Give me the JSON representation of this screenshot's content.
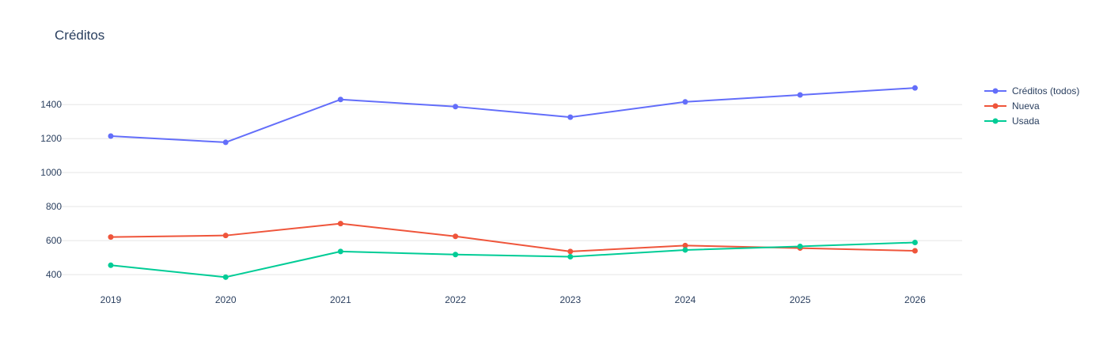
{
  "chart_data": {
    "type": "line",
    "title": "Créditos",
    "xlabel": "",
    "ylabel": "",
    "x": [
      "2019",
      "2020",
      "2021",
      "2022",
      "2023",
      "2024",
      "2025",
      "2026"
    ],
    "yticks": [
      400,
      600,
      800,
      1000,
      1200,
      1400
    ],
    "ylim": [
      340,
      1550
    ],
    "grid": true,
    "legend_position": "top-right",
    "series": [
      {
        "name": "Créditos (todos)",
        "color": "#636efa",
        "values": [
          1215,
          1178,
          1430,
          1388,
          1326,
          1416,
          1457,
          1498
        ]
      },
      {
        "name": "Nueva",
        "color": "#ef553b",
        "values": [
          621,
          630,
          700,
          625,
          536,
          571,
          556,
          540
        ]
      },
      {
        "name": "Usada",
        "color": "#00cc96",
        "values": [
          455,
          385,
          536,
          518,
          505,
          545,
          566,
          589
        ]
      }
    ]
  }
}
